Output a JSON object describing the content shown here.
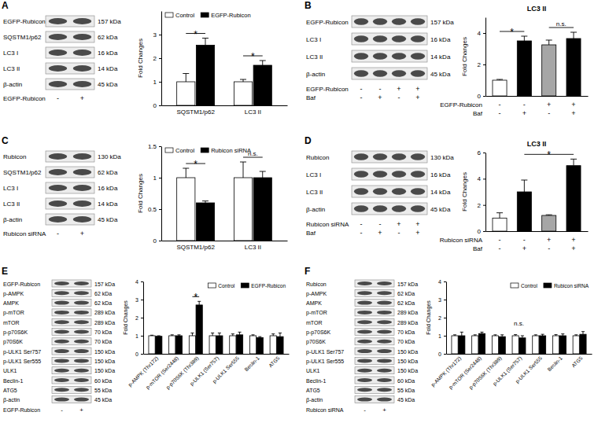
{
  "panels": [
    {
      "label": "A",
      "blot": {
        "rows": [
          {
            "name": "EGFP-Rubicon",
            "kda": "157 kDa"
          },
          {
            "name": "SQSTM1/p62",
            "kda": "62 kDa"
          },
          {
            "name": "LC3 I",
            "kda": "16 kDa"
          },
          {
            "name": "LC3 II",
            "kda": "14 kDa"
          },
          {
            "name": "β-actin",
            "kda": "45 kDa"
          }
        ],
        "conditions": [
          {
            "name": "EGFP-Rubicon",
            "lanes": [
              "-",
              "+"
            ]
          }
        ]
      }
    },
    {
      "label": "B",
      "blot": {
        "rows": [
          {
            "name": "EGFP-Rubicon",
            "kda": "157 kDa"
          },
          {
            "name": "LC3 I",
            "kda": "16 kDa"
          },
          {
            "name": "LC3 II",
            "kda": "14 kDa"
          },
          {
            "name": "β-actin",
            "kda": "45 kDa"
          }
        ],
        "conditions": [
          {
            "name": "EGFP-Rubicon",
            "lanes": [
              "-",
              "-",
              "+",
              "+"
            ]
          },
          {
            "name": "Baf",
            "lanes": [
              "-",
              "+",
              "-",
              "+"
            ]
          }
        ]
      }
    },
    {
      "label": "C",
      "blot": {
        "rows": [
          {
            "name": "Rubicon",
            "kda": "130 kDa"
          },
          {
            "name": "SQSTM1/p62",
            "kda": "62 kDa"
          },
          {
            "name": "LC3 I",
            "kda": "16 kDa"
          },
          {
            "name": "LC3 II",
            "kda": "14 kDa"
          },
          {
            "name": "β-actin",
            "kda": "45 kDa"
          }
        ],
        "conditions": [
          {
            "name": "Rubicon siRNA",
            "lanes": [
              "-",
              "+"
            ]
          }
        ]
      }
    },
    {
      "label": "D",
      "blot": {
        "rows": [
          {
            "name": "Rubicon",
            "kda": "130 kDa"
          },
          {
            "name": "LC3 I",
            "kda": "16 kDa"
          },
          {
            "name": "LC3 II",
            "kda": "14 kDa"
          },
          {
            "name": "β-actin",
            "kda": "45 kDa"
          }
        ],
        "conditions": [
          {
            "name": "Rubicon siRNA",
            "lanes": [
              "-",
              "-",
              "+",
              "+"
            ]
          },
          {
            "name": "Baf",
            "lanes": [
              "-",
              "+",
              "-",
              "+"
            ]
          }
        ]
      }
    },
    {
      "label": "E",
      "blot": {
        "rows": [
          {
            "name": "EGFP-Rubicon",
            "kda": "157 kDa"
          },
          {
            "name": "p-AMPK",
            "kda": "62 kDa"
          },
          {
            "name": "AMPK",
            "kda": "62 kDa"
          },
          {
            "name": "p-mTOR",
            "kda": "289 kDa"
          },
          {
            "name": "mTOR",
            "kda": "289 kDa"
          },
          {
            "name": "p-p70S6K",
            "kda": "70 kDa"
          },
          {
            "name": "p70S6K",
            "kda": "70 kDa"
          },
          {
            "name": "p-ULK1 Ser757",
            "kda": "150 kDa"
          },
          {
            "name": "p-ULK1 Ser555",
            "kda": "150 kDa"
          },
          {
            "name": "ULK1",
            "kda": "150 kDa"
          },
          {
            "name": "Beclin-1",
            "kda": "60 kDa"
          },
          {
            "name": "ATG5",
            "kda": "55 kDa"
          },
          {
            "name": "β-actin",
            "kda": "45 kDa"
          }
        ],
        "conditions": [
          {
            "name": "EGFP-Rubicon",
            "lanes": [
              "-",
              "+"
            ]
          }
        ]
      }
    },
    {
      "label": "F",
      "blot": {
        "rows": [
          {
            "name": "Rubicon",
            "kda": "157 kDa"
          },
          {
            "name": "p-AMPK",
            "kda": "62 kDa"
          },
          {
            "name": "AMPK",
            "kda": "62 kDa"
          },
          {
            "name": "p-mTOR",
            "kda": "289 kDa"
          },
          {
            "name": "mTOR",
            "kda": "289 kDa"
          },
          {
            "name": "p-p70S6K",
            "kda": "70 kDa"
          },
          {
            "name": "p70S6K",
            "kda": "70 kDa"
          },
          {
            "name": "p-ULK1 Ser757",
            "kda": "150 kDa"
          },
          {
            "name": "p-ULK1 Ser555",
            "kda": "150 kDa"
          },
          {
            "name": "ULK1",
            "kda": "150 kDa"
          },
          {
            "name": "Beclin-1",
            "kda": "60 kDa"
          },
          {
            "name": "ATG5",
            "kda": "55 kDa"
          },
          {
            "name": "β-actin",
            "kda": "45 kDa"
          }
        ],
        "conditions": [
          {
            "name": "Rubicon siRNA",
            "lanes": [
              "-",
              "+"
            ]
          }
        ]
      }
    }
  ],
  "chart_data": [
    {
      "type": "bar",
      "y_label": "Fold Changes",
      "categories": [
        "SQSTM1/p62",
        "LC3 II"
      ],
      "series": [
        {
          "name": "Control",
          "color": "#ffffff",
          "values": [
            1,
            1
          ],
          "errors": [
            0.35,
            0.1
          ]
        },
        {
          "name": "EGFP-Rubicon",
          "color": "#000000",
          "values": [
            2.55,
            1.7
          ],
          "errors": [
            0.3,
            0.2
          ]
        }
      ],
      "ylim": [
        0,
        4
      ],
      "yticks": [
        0,
        1,
        2,
        3
      ],
      "legend": "upper left",
      "annotations": [
        "*",
        "*"
      ]
    },
    {
      "type": "bar",
      "title": "LC3 II",
      "y_label": "Fold Changes",
      "categories": [
        null,
        null,
        null,
        null
      ],
      "x_conditions": [
        {
          "name": "EGFP-Rubicon",
          "labels": [
            "-",
            "-",
            "+",
            "+"
          ]
        },
        {
          "name": "Baf",
          "labels": [
            "-",
            "+",
            "-",
            "+"
          ]
        }
      ],
      "series": [
        {
          "colors": [
            "#ffffff",
            "#000000",
            "#a6a6a6",
            "#000000"
          ],
          "values": [
            1,
            3.5,
            3.25,
            3.65
          ],
          "errors": [
            0.05,
            0.3,
            0.3,
            0.4
          ]
        }
      ],
      "ylim": [
        0,
        5
      ],
      "yticks": [
        0,
        2,
        4
      ],
      "annotations": [
        "*",
        "n.s."
      ]
    },
    {
      "type": "bar",
      "y_label": "Fold Changes",
      "categories": [
        "SQSTM1/p62",
        "LC3 II"
      ],
      "series": [
        {
          "name": "Control",
          "color": "#ffffff",
          "values": [
            1,
            1
          ],
          "errors": [
            0.15,
            0.25
          ]
        },
        {
          "name": "Rubicon siRNA",
          "color": "#000000",
          "values": [
            0.6,
            1
          ],
          "errors": [
            0.03,
            0.1
          ]
        }
      ],
      "ylim": [
        0,
        1.5
      ],
      "yticks": [
        0,
        0.5,
        1,
        1.5
      ],
      "legend": "upper left",
      "annotations": [
        "*",
        "n.s."
      ]
    },
    {
      "type": "bar",
      "title": "LC3 II",
      "y_label": "Fold Changes",
      "categories": [
        null,
        null,
        null,
        null
      ],
      "x_conditions": [
        {
          "name": "Rubicon siRNA",
          "labels": [
            "-",
            "-",
            "+",
            "+"
          ]
        },
        {
          "name": "Baf",
          "labels": [
            "-",
            "+",
            "-",
            "+"
          ]
        }
      ],
      "series": [
        {
          "colors": [
            "#ffffff",
            "#000000",
            "#a6a6a6",
            "#000000"
          ],
          "values": [
            1,
            3,
            1.2,
            5
          ],
          "errors": [
            0.4,
            0.9,
            0.05,
            0.5
          ]
        }
      ],
      "ylim": [
        0,
        6
      ],
      "yticks": [
        0,
        2,
        4,
        6
      ],
      "annotations": [
        "*"
      ]
    },
    {
      "type": "bar",
      "y_label": "Fold Changes",
      "categories": [
        "p-AMPK (Thr172)",
        "p-mTOR (Ser2448)",
        "p-p70S6K (Thr389)",
        "p-ULK1 (Ser757)",
        "p-ULK1 Ser555",
        "Beclin-1",
        "ATG5"
      ],
      "series": [
        {
          "name": "Control",
          "color": "#ffffff",
          "values": [
            1,
            1,
            1,
            1,
            1,
            1,
            1
          ],
          "errors": [
            0.03,
            0.05,
            0.15,
            0.15,
            0.1,
            0.05,
            0.1
          ]
        },
        {
          "name": "EGFP-Rubicon",
          "color": "#000000",
          "values": [
            0.97,
            1,
            2.7,
            1,
            1.05,
            0.9,
            0.95
          ],
          "errors": [
            0.03,
            0.05,
            0.2,
            0.15,
            0.15,
            0.05,
            0.2
          ]
        }
      ],
      "ylim": [
        0,
        4
      ],
      "yticks": [
        0,
        1,
        2,
        3,
        4
      ],
      "legend": "upper right",
      "annotations": [
        "*"
      ]
    },
    {
      "type": "bar",
      "y_label": "Fold Changes",
      "categories": [
        "p-AMPK (Thr172)",
        "p-mTOR (Ser2448)",
        "p-p70S6K (Thr389)",
        "p-ULK1 (Ser757)",
        "p-ULK1 Ser555",
        "Beclin-1",
        "ATG5"
      ],
      "series": [
        {
          "name": "Control",
          "color": "#ffffff",
          "values": [
            1,
            1,
            1,
            1,
            1,
            1,
            1
          ],
          "errors": [
            0.05,
            0.05,
            0.05,
            0.06,
            0.05,
            0.06,
            0.05
          ]
        },
        {
          "name": "Rubicon siRNA",
          "color": "#000000",
          "values": [
            1,
            1.12,
            0.95,
            0.88,
            1,
            1,
            1.08
          ],
          "errors": [
            0.2,
            0.08,
            0.1,
            0.12,
            0.08,
            0.1,
            0.15
          ]
        }
      ],
      "ylim": [
        0,
        4
      ],
      "yticks": [
        0,
        1,
        2,
        3,
        4
      ],
      "legend": "upper right",
      "annotations": [
        "n.s."
      ]
    }
  ]
}
